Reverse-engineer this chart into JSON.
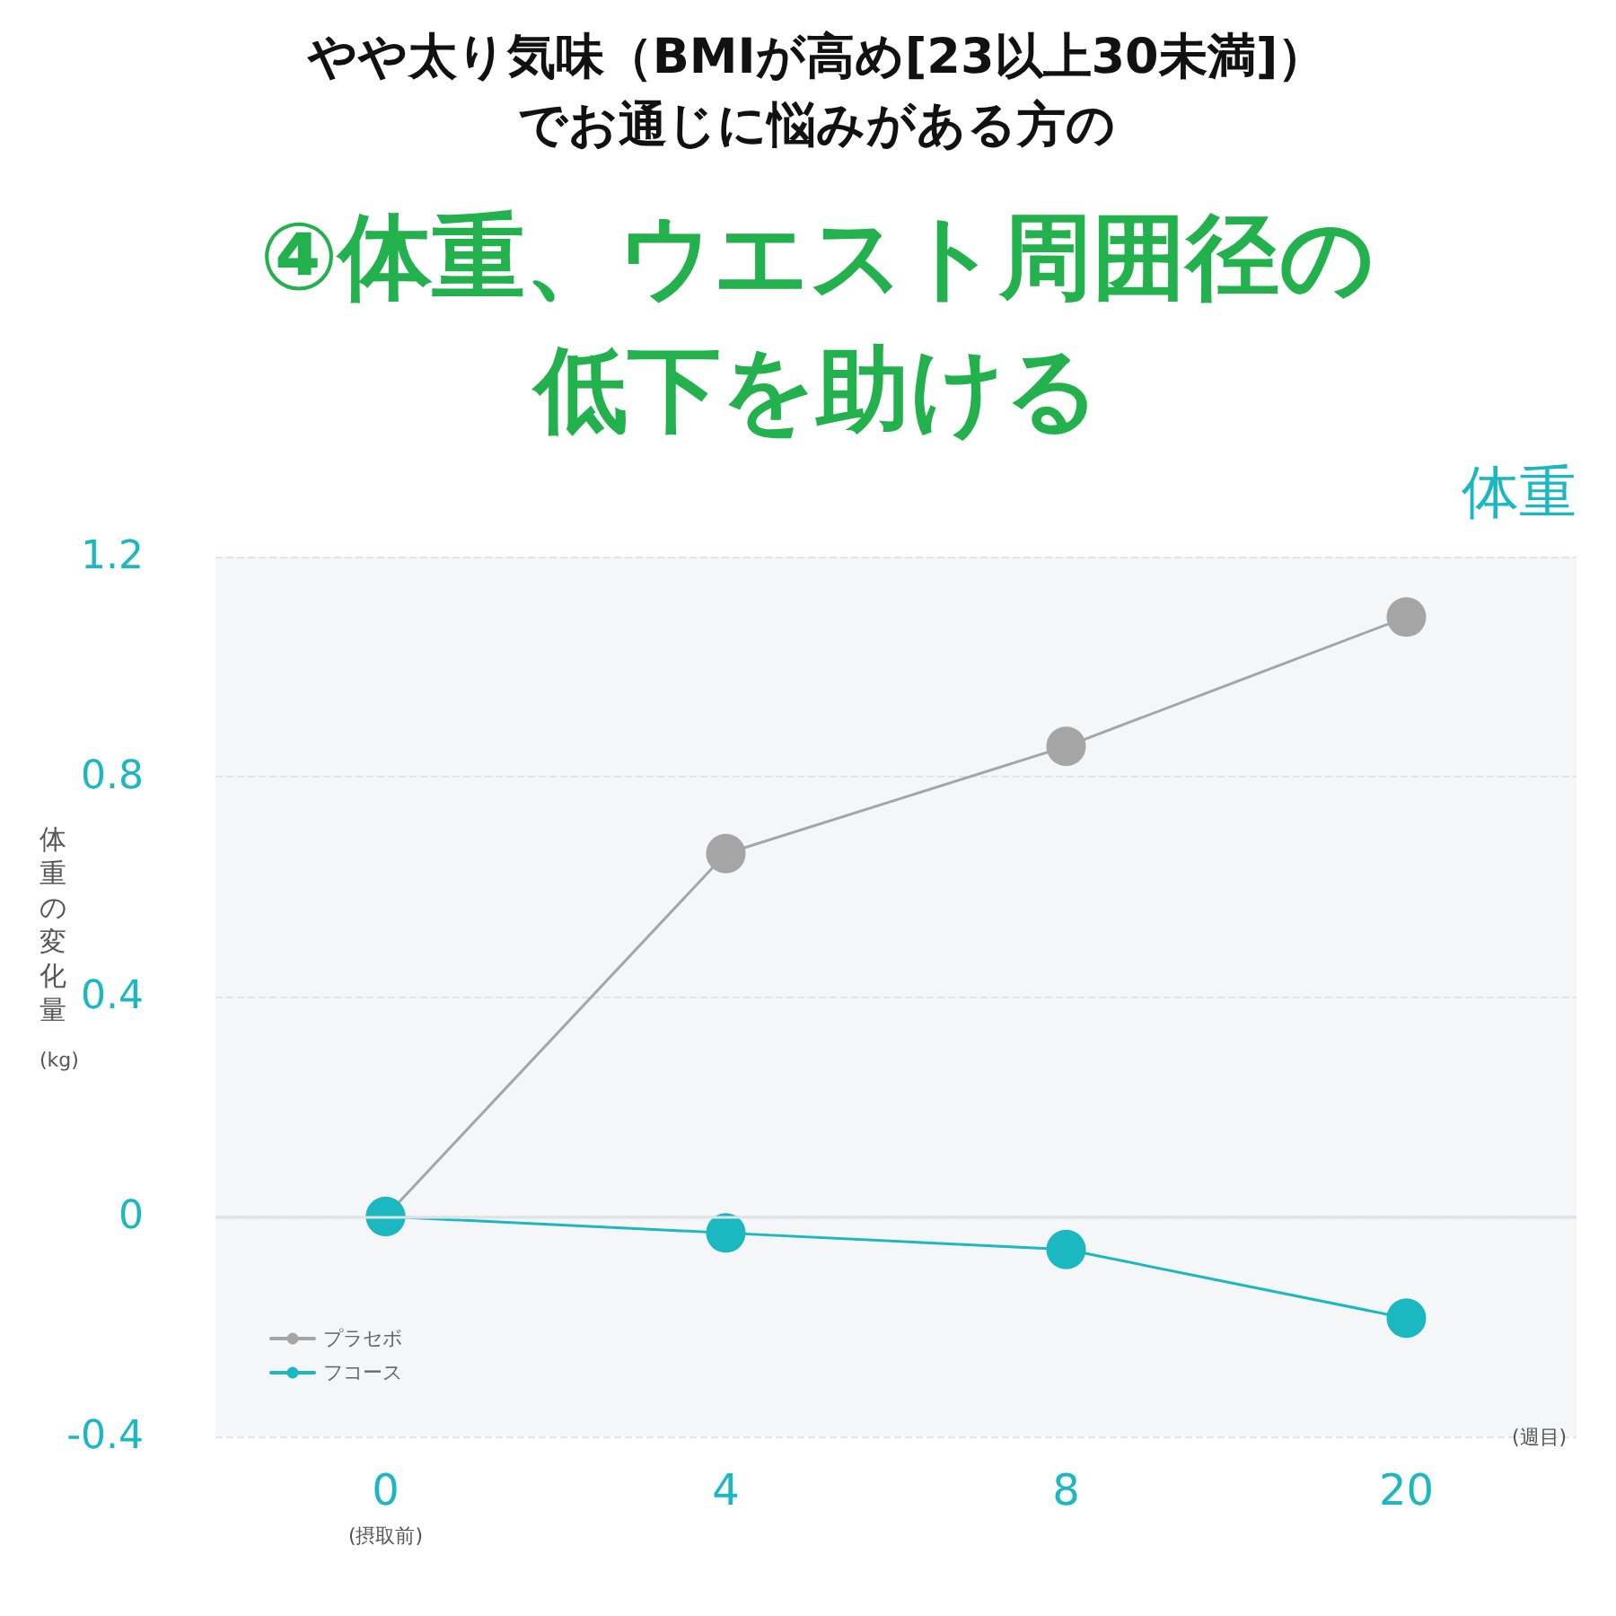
{
  "chart_data": {
    "type": "line",
    "title": "やや太り気味（BMIが高め[23以上30未満]）でお通じに悩みがある方の",
    "subtitle": "④体重、ウエスト周囲径の低下を助ける",
    "annotations": [
      "体重"
    ],
    "xlabel": "(週目)",
    "ylabel": "体重の変化量 (kg)",
    "categories": [
      "0\n(摂取前)",
      "4",
      "8",
      "20"
    ],
    "series": [
      {
        "name": "プラセボ",
        "color": "#a5a5a5",
        "values": [
          0,
          0.66,
          0.855,
          1.09
        ]
      },
      {
        "name": "フコース",
        "color": "#1bb8c2",
        "values": [
          0,
          -0.03,
          -0.06,
          -0.185
        ]
      }
    ],
    "ylim": [
      -0.4,
      1.2
    ],
    "yticks": [
      -0.4,
      0,
      0.4,
      0.8,
      1.2
    ],
    "grid": "y",
    "legend": "bottom left",
    "marker": "circle",
    "line_style": "solid"
  }
}
